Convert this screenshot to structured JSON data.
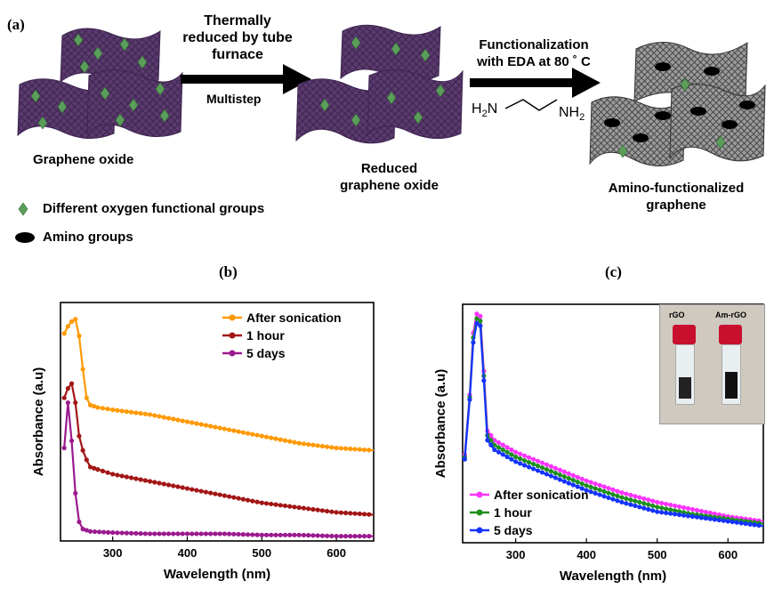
{
  "panel_labels": {
    "a": "(a)",
    "b": "(b)",
    "c": "(c)"
  },
  "schematic": {
    "step1_line1": "Thermally",
    "step1_line2": "reduced by tube",
    "step1_line3": "furnace",
    "step1_sub": "Multistep",
    "step2_line1": "Functionalization",
    "step2_line2": "with EDA at 80 ˚ C",
    "material1": "Graphene oxide",
    "material2_line1": "Reduced",
    "material2_line2": "graphene oxide",
    "material3_line1": "Amino-functionalized",
    "material3_line2": "graphene",
    "formula_left": "H",
    "formula_left_sub": "2",
    "formula_left_n": "N",
    "formula_right": "NH",
    "formula_right_sub": "2",
    "legend1": "Different oxygen functional groups",
    "legend2": "Amino groups",
    "colors": {
      "sheet": "#5b3a6e",
      "sheet_dark": "#3d2550",
      "diamond": "#5a9e5a",
      "gray_sheet": "#8a8a8a"
    }
  },
  "inset": {
    "label1": "rGO",
    "label2": "Am-rGO"
  },
  "chart_data": [
    {
      "type": "line",
      "panel": "(b)",
      "xlabel": "Wavelength (nm)",
      "ylabel": "Absorbance (a.u)",
      "xlim": [
        230,
        650
      ],
      "ylim": [
        0,
        1.0
      ],
      "xticks": [
        300,
        400,
        500,
        600
      ],
      "grid": false,
      "legend_position": "top-right",
      "series": [
        {
          "name": "After sonication",
          "color": "#ff9900",
          "x": [
            235,
            240,
            245,
            250,
            255,
            260,
            265,
            270,
            280,
            300,
            350,
            400,
            450,
            500,
            550,
            600,
            650
          ],
          "y": [
            0.87,
            0.9,
            0.92,
            0.93,
            0.86,
            0.72,
            0.6,
            0.57,
            0.56,
            0.55,
            0.53,
            0.5,
            0.47,
            0.44,
            0.41,
            0.39,
            0.38
          ]
        },
        {
          "name": "1 hour",
          "color": "#a31515",
          "x": [
            235,
            240,
            245,
            250,
            255,
            260,
            265,
            270,
            280,
            300,
            350,
            400,
            450,
            500,
            550,
            600,
            650
          ],
          "y": [
            0.6,
            0.64,
            0.66,
            0.58,
            0.44,
            0.38,
            0.34,
            0.31,
            0.3,
            0.28,
            0.25,
            0.22,
            0.19,
            0.16,
            0.14,
            0.12,
            0.11
          ]
        },
        {
          "name": "5 days",
          "color": "#9b1a8e",
          "x": [
            235,
            240,
            245,
            250,
            255,
            260,
            270,
            300,
            350,
            400,
            450,
            500,
            550,
            600,
            650
          ],
          "y": [
            0.39,
            0.58,
            0.42,
            0.2,
            0.08,
            0.05,
            0.04,
            0.035,
            0.03,
            0.03,
            0.03,
            0.025,
            0.025,
            0.02,
            0.02
          ]
        }
      ]
    },
    {
      "type": "line",
      "panel": "(c)",
      "xlabel": "Wavelength (nm)",
      "ylabel": "Absorbance (a.u)",
      "xlim": [
        225,
        650
      ],
      "ylim": [
        0,
        1.0
      ],
      "xticks": [
        300,
        400,
        500,
        600
      ],
      "grid": false,
      "legend_position": "bottom-left",
      "series": [
        {
          "name": "After sonication",
          "color": "#ff33ff",
          "x": [
            228,
            235,
            240,
            245,
            250,
            255,
            260,
            270,
            300,
            350,
            400,
            450,
            500,
            550,
            600,
            650
          ],
          "y": [
            0.37,
            0.62,
            0.88,
            0.96,
            0.95,
            0.72,
            0.47,
            0.43,
            0.38,
            0.32,
            0.26,
            0.21,
            0.17,
            0.14,
            0.11,
            0.09
          ]
        },
        {
          "name": "1 hour",
          "color": "#1f8f1f",
          "x": [
            228,
            235,
            240,
            245,
            250,
            255,
            260,
            270,
            300,
            350,
            400,
            450,
            500,
            550,
            600,
            650
          ],
          "y": [
            0.36,
            0.61,
            0.86,
            0.94,
            0.93,
            0.7,
            0.45,
            0.41,
            0.36,
            0.3,
            0.24,
            0.19,
            0.15,
            0.12,
            0.1,
            0.08
          ]
        },
        {
          "name": "5 days",
          "color": "#1533ff",
          "x": [
            228,
            235,
            240,
            245,
            250,
            255,
            260,
            270,
            300,
            350,
            400,
            450,
            500,
            550,
            600,
            650
          ],
          "y": [
            0.35,
            0.6,
            0.84,
            0.92,
            0.91,
            0.68,
            0.43,
            0.39,
            0.34,
            0.28,
            0.22,
            0.17,
            0.13,
            0.11,
            0.09,
            0.07
          ]
        }
      ]
    }
  ]
}
